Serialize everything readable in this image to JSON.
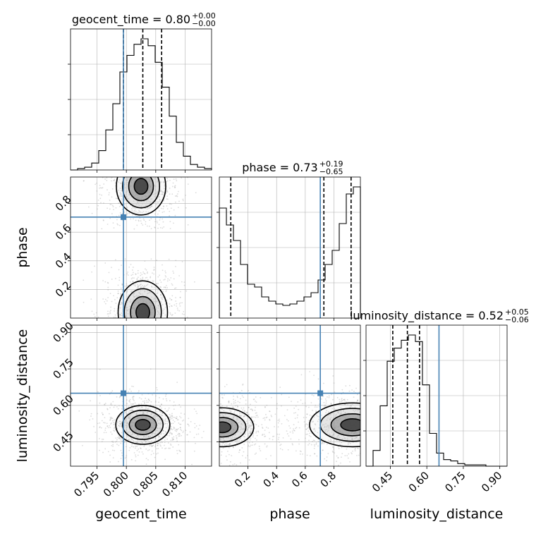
{
  "chart_data": {
    "type": "corner",
    "parameters": [
      "geocent_time",
      "phase",
      "luminosity_distance"
    ],
    "titles": [
      {
        "param": "geocent_time",
        "label": "geocent_time = 0.80",
        "plus": "+0.00",
        "minus": "−0.00"
      },
      {
        "param": "phase",
        "label": "phase = 0.73",
        "plus": "+0.19",
        "minus": "−0.65"
      },
      {
        "param": "luminosity_distance",
        "label": "luminosity_distance = 0.52",
        "plus": "+0.05",
        "minus": "−0.06"
      }
    ],
    "axis_labels": {
      "x": [
        "geocent_time",
        "phase",
        "luminosity_distance"
      ],
      "y": [
        "phase",
        "luminosity_distance"
      ]
    },
    "ranges": {
      "geocent_time": [
        0.7905,
        0.8145
      ],
      "phase": [
        0.0,
        0.985
      ],
      "luminosity_distance": [
        0.35,
        0.93
      ]
    },
    "ticks": {
      "geocent_time": {
        "values": [
          0.795,
          0.8,
          0.805,
          0.81
        ],
        "labels": [
          "0.795",
          "0.800",
          "0.805",
          "0.810"
        ]
      },
      "phase": {
        "values": [
          0.2,
          0.4,
          0.6,
          0.8
        ],
        "labels": [
          "0.2",
          "0.4",
          "0.6",
          "0.8"
        ]
      },
      "luminosity_distance": {
        "values": [
          0.45,
          0.6,
          0.75,
          0.9
        ],
        "labels": [
          "0.45",
          "0.60",
          "0.75",
          "0.90"
        ]
      }
    },
    "truths": {
      "geocent_time": 0.7995,
      "phase": 0.705,
      "luminosity_distance": 0.65
    },
    "quantiles": {
      "geocent_time": [
        0.7995,
        0.8028,
        0.806
      ],
      "phase": [
        0.08,
        0.73,
        0.92
      ],
      "luminosity_distance": [
        0.46,
        0.52,
        0.57
      ]
    },
    "histograms": {
      "geocent_time": {
        "edges": [
          0.7905,
          0.7917,
          0.7929,
          0.7941,
          0.7953,
          0.7965,
          0.7977,
          0.7989,
          0.8001,
          0.8013,
          0.8025,
          0.8037,
          0.8049,
          0.8061,
          0.8073,
          0.8085,
          0.8097,
          0.8109,
          0.8121,
          0.8133,
          0.8145
        ],
        "counts": [
          0.0,
          0.01,
          0.02,
          0.05,
          0.14,
          0.29,
          0.48,
          0.71,
          0.83,
          0.91,
          0.95,
          0.9,
          0.78,
          0.6,
          0.39,
          0.2,
          0.1,
          0.04,
          0.02,
          0.01
        ]
      },
      "phase": {
        "edges": [
          0.0,
          0.0493,
          0.0985,
          0.1478,
          0.197,
          0.2463,
          0.2955,
          0.3448,
          0.394,
          0.4433,
          0.4925,
          0.5418,
          0.591,
          0.6403,
          0.6895,
          0.7388,
          0.788,
          0.8373,
          0.8865,
          0.9358,
          0.985
        ],
        "counts": [
          0.78,
          0.66,
          0.55,
          0.38,
          0.24,
          0.22,
          0.15,
          0.12,
          0.1,
          0.09,
          0.1,
          0.12,
          0.15,
          0.18,
          0.27,
          0.38,
          0.48,
          0.67,
          0.88,
          0.93
        ]
      },
      "luminosity_distance": {
        "edges": [
          0.35,
          0.379,
          0.408,
          0.437,
          0.466,
          0.495,
          0.524,
          0.553,
          0.582,
          0.611,
          0.64,
          0.669,
          0.698,
          0.727,
          0.756,
          0.785,
          0.814,
          0.843,
          0.872,
          0.901,
          0.93
        ],
        "counts": [
          0.0,
          0.12,
          0.46,
          0.8,
          0.9,
          0.96,
          1.0,
          0.95,
          0.62,
          0.25,
          0.1,
          0.05,
          0.04,
          0.02,
          0.01,
          0.01,
          0.01,
          0.0,
          0.0,
          0.0
        ]
      }
    },
    "density_blobs": [
      {
        "panel": "phase_vs_geocent_time",
        "x": 0.8025,
        "y": 0.92,
        "sx": 0.0021,
        "sy": 0.1,
        "clip": [
          0.62,
          0.985
        ]
      },
      {
        "panel": "phase_vs_geocent_time",
        "x": 0.8028,
        "y": 0.04,
        "sx": 0.0021,
        "sy": 0.11,
        "clip": [
          0.0,
          0.42
        ]
      },
      {
        "panel": "luminosity_distance_vs_geocent_time",
        "x": 0.8028,
        "y": 0.52,
        "sx": 0.0023,
        "sy": 0.04,
        "clip": [
          0.35,
          0.93
        ]
      },
      {
        "panel": "luminosity_distance_vs_phase",
        "x": 0.02,
        "y": 0.51,
        "sx": 0.11,
        "sy": 0.04,
        "clip": [
          0.35,
          0.93
        ]
      },
      {
        "panel": "luminosity_distance_vs_phase",
        "x": 0.93,
        "y": 0.52,
        "sx": 0.15,
        "sy": 0.045,
        "clip": [
          0.35,
          0.93
        ]
      }
    ],
    "colors": {
      "truth": "#4682b4",
      "hist": "#000000",
      "grid": "#b0b0b0",
      "points": "#9a9a9a"
    }
  }
}
